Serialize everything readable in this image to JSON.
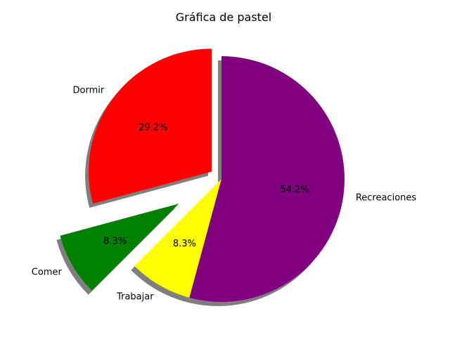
{
  "chart_data": {
    "type": "pie",
    "title": "Gráfica de pastel",
    "categories": [
      "Dormir",
      "Comer",
      "Trabajar",
      "Recreaciones"
    ],
    "values": [
      29.2,
      8.3,
      8.3,
      54.2
    ],
    "percent_labels": [
      "29.2%",
      "8.3%",
      "8.3%",
      "54.2%"
    ],
    "colors": [
      "#ff0000",
      "#008000",
      "#ffff00",
      "#800080"
    ],
    "explode": [
      0.1,
      0.4,
      0,
      0
    ],
    "start_angle_deg": 90,
    "shadow": true,
    "legend": "none"
  }
}
